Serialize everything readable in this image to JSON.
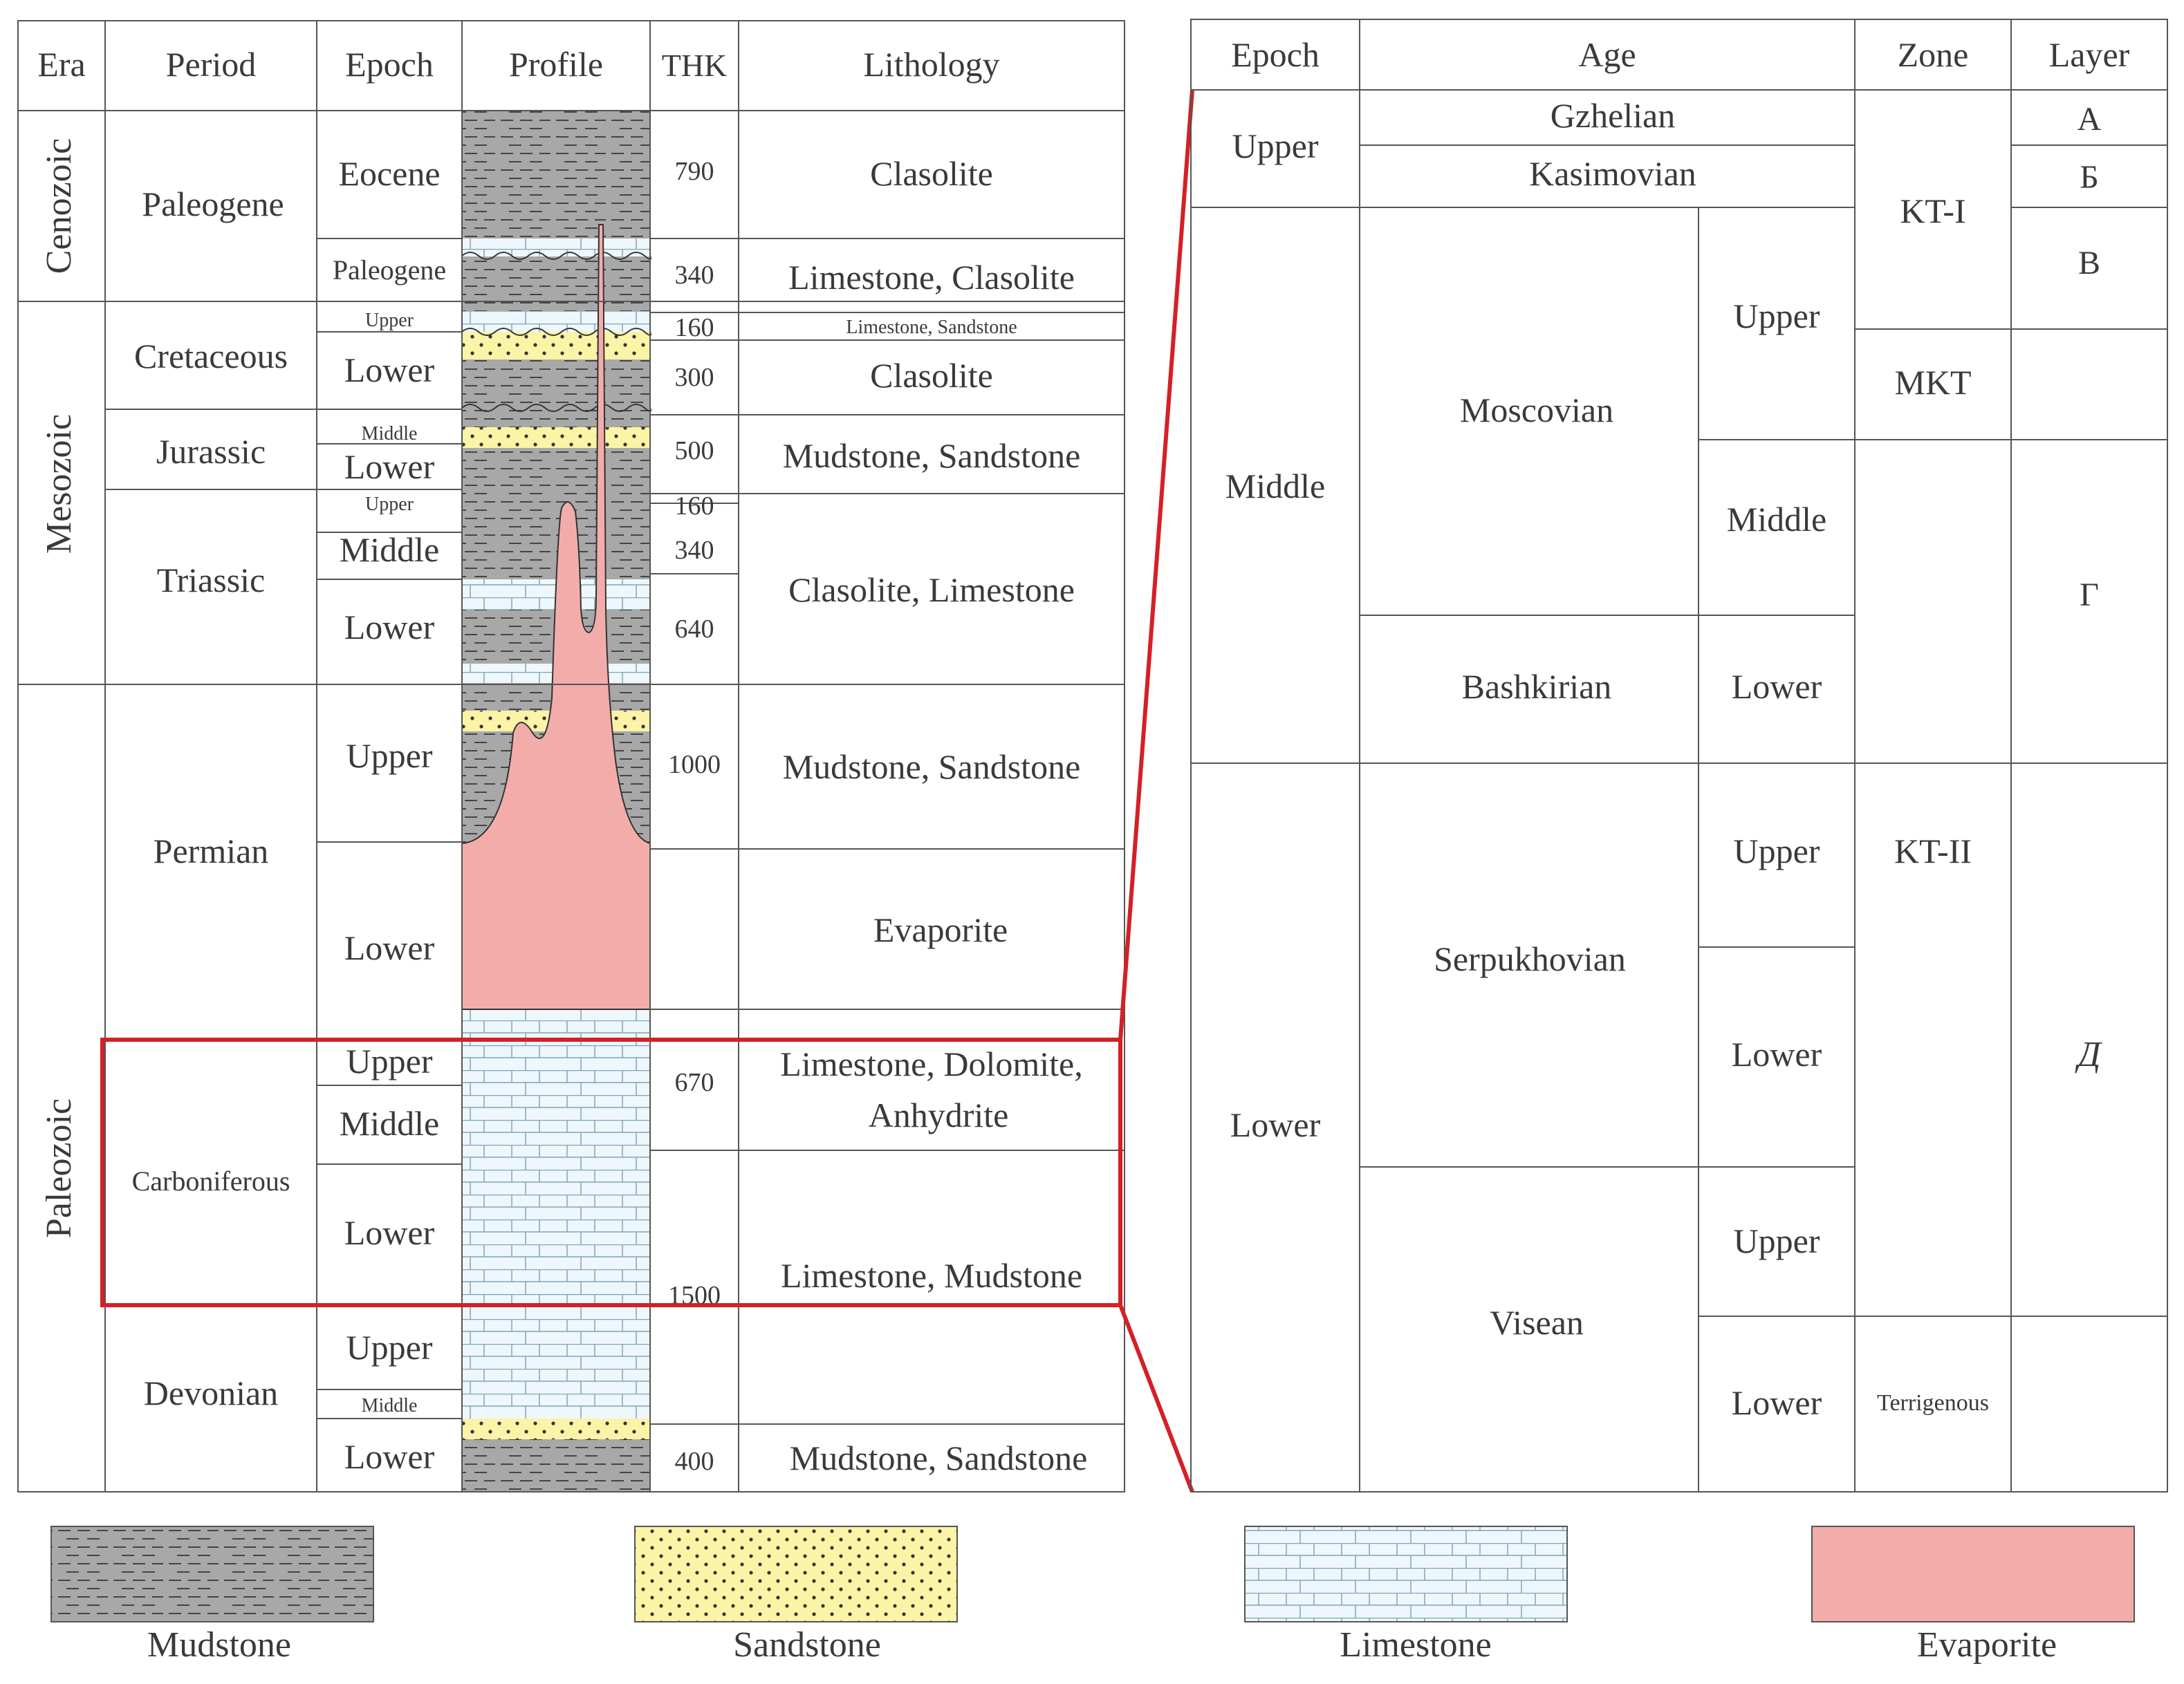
{
  "left_table": {
    "headers": {
      "era": "Era",
      "period": "Period",
      "epoch": "Epoch",
      "profile": "Profile",
      "thk": "THK",
      "lithology": "Lithology"
    },
    "eras": {
      "cenozoic": "Cenozoic",
      "mesozoic": "Mesozoic",
      "paleozoic": "Paleozoic"
    },
    "periods": {
      "paleogene": "Paleogene",
      "cretaceous": "Cretaceous",
      "jurassic": "Jurassic",
      "triassic": "Triassic",
      "permian": "Permian",
      "carboniferous": "Carboniferous",
      "devonian": "Devonian"
    },
    "epochs": {
      "eocene": "Eocene",
      "paleogene": "Paleogene",
      "cretaceous_upper": "Upper",
      "cretaceous_lower": "Lower",
      "jurassic_middle": "Middle",
      "jurassic_lower": "Lower",
      "triassic_upper": "Upper",
      "triassic_middle": "Middle",
      "triassic_lower": "Lower",
      "permian_upper": "Upper",
      "permian_lower": "Lower",
      "carb_upper": "Upper",
      "carb_middle": "Middle",
      "carb_lower": "Lower",
      "devonian_upper": "Upper",
      "devonian_middle": "Middle",
      "devonian_lower": "Lower"
    },
    "thk": {
      "eocene": "790",
      "paleogene": "340",
      "cretaceous_upper": "160",
      "cretaceous_lower": "300",
      "jurassic": "500",
      "triassic_upper": "160",
      "triassic_middle": "340",
      "triassic_lower": "640",
      "permian_upper": "1000",
      "carb_upper": "670",
      "carb_lower": "1500",
      "devonian_lower": "400"
    },
    "lithology": {
      "eocene": "Clasolite",
      "paleogene": "Limestone, Clasolite",
      "cretaceous_upper": "Limestone, Sandstone",
      "cretaceous_lower": "Clasolite",
      "jurassic": "Mudstone, Sandstone",
      "triassic": "Clasolite, Limestone",
      "permian_upper": "Mudstone, Sandstone",
      "permian_lower": "Evaporite",
      "carb_upper_line1": "Limestone, Dolomite,",
      "carb_upper_line2": "Anhydrite",
      "carb_lower": "Limestone, Mudstone",
      "devonian_lower": "Mudstone, Sandstone"
    }
  },
  "right_table": {
    "headers": {
      "epoch": "Epoch",
      "age": "Age",
      "zone": "Zone",
      "layer": "Layer"
    },
    "epochs": {
      "upper": "Upper",
      "middle": "Middle",
      "lower": "Lower"
    },
    "ages": {
      "gzhelian": "Gzhelian",
      "kasimovian": "Kasimovian",
      "moscovian": "Moscovian",
      "bashkirian": "Bashkirian",
      "serpukhovian": "Serpukhovian",
      "visean": "Visean"
    },
    "subages": {
      "moscovian_upper": "Upper",
      "moscovian_middle": "Middle",
      "bashkirian_lower": "Lower",
      "serpukhovian_upper": "Upper",
      "serpukhovian_lower": "Lower",
      "visean_upper": "Upper",
      "visean_lower": "Lower"
    },
    "zones": {
      "kt1": "KT-I",
      "mkt": "MKT",
      "kt2": "KT-II",
      "terrigenous": "Terrigenous"
    },
    "layers": {
      "a": "А",
      "b": "Б",
      "v": "В",
      "g": "Г",
      "d": "Д"
    }
  },
  "legend": {
    "mudstone": "Mudstone",
    "sandstone": "Sandstone",
    "limestone": "Limestone",
    "evaporite": "Evaporite"
  },
  "colors": {
    "mudstone": "#a8a8a8",
    "sandstone": "#fbf3a6",
    "limestone": "#eef7fb",
    "evaporite": "#f2adab",
    "highlight": "#d42027",
    "grid": "#555555"
  }
}
